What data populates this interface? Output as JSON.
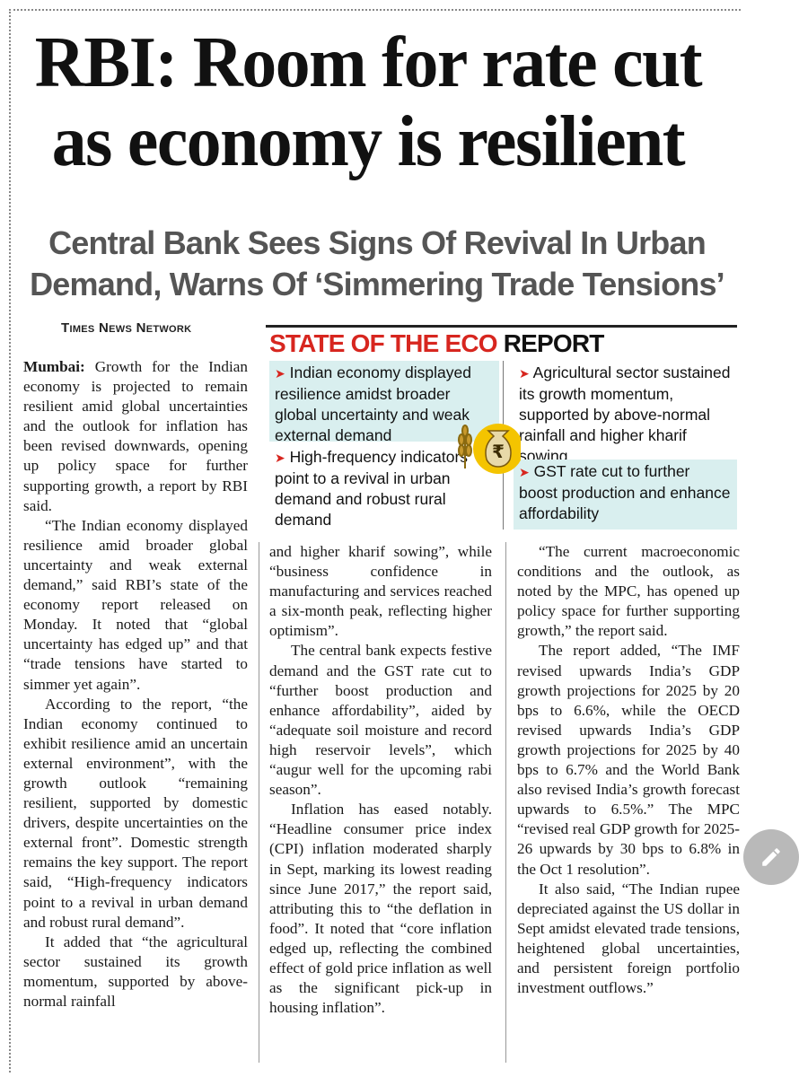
{
  "article": {
    "headline": "RBI: Room for rate cut as economy is resilient",
    "subheadline": "Central Bank Sees Signs Of Revival In Urban Demand, Warns Of ‘Simmering Trade Tensions’",
    "byline": "Times News Network",
    "dateline": "Mumbai:",
    "col1": {
      "p1": "Growth for the Indian economy is projected to remain resilient amid global uncertainties and the outlook for inflation has been revised downwards, opening up policy space for further supporting growth, a report by RBI said.",
      "p2": "“The Indian economy displayed resilience amid broader global uncertainty and weak external demand,” said RBI’s state of the economy report released on Monday. It noted that “global uncertainty has edged up” and that “trade tensions have started to simmer yet again”.",
      "p3": "According to the report, “the Indian economy continued to exhibit resilience amid an uncertain external environment”, with the growth outlook “remaining resilient, supported by domestic drivers, despite uncertainties on the external front”. Domestic strength remains the key support. The report said, “High-frequency indicators point to a revival in urban demand and robust rural demand”.",
      "p4": "It added that “the agricultural sector sustained its growth momentum, supported by above-normal rainfall"
    },
    "col2": {
      "p1": "and higher kharif sowing”, while “business confidence in manufacturing and services reached a six-month peak, reflecting higher optimism”.",
      "p2": "The central bank expects festive demand and the GST rate cut to “further boost production and enhance affordability”, aided by “adequate soil moisture and record high reservoir levels”, which “augur well for the upcoming rabi season”.",
      "p3": "Inflation has eased notably. “Headline consumer price index (CPI) inflation moderated sharply in Sept, marking its lowest reading since June 2017,” the report said, attributing this to “the deflation in food”. It noted that “core inflation edged up, reflecting the combined effect of gold price inflation as well as the significant pick-up in housing inflation”."
    },
    "col3": {
      "p1": "“The current macroeconomic conditions and the outlook, as noted by the MPC, has opened up policy space for further supporting growth,” the report said.",
      "p2": "The report added, “The IMF revised upwards India’s GDP growth projections for 2025 by 20 bps to 6.6%, while the OECD revised upwards India’s GDP growth projections for 2025 by 40 bps to 6.7% and the World Bank also revised India’s growth forecast upwards to 6.5%.” The MPC “revised real GDP growth for 2025-26 upwards by 30 bps to 6.8% in the Oct 1 resolution”.",
      "p3": "It also said, “The Indian rupee depreciated against the US dollar in Sept amidst elevated trade tensions, heightened global uncertainties, and persistent foreign portfolio investment outflows.”"
    }
  },
  "infobox": {
    "title_red": "STATE OF THE ECO",
    "title_black": "REPORT",
    "points": [
      "Indian economy displayed resilience amidst broader global uncertainty and weak external demand",
      "High-frequency indicators point to a revival in urban demand and robust rural demand",
      "Agricultural sector sustained its growth momentum, supported by above-normal rainfall and higher kharif sowing",
      "GST rate cut to further boost production and enhance affordability"
    ],
    "coin_symbol": "₹",
    "accent_color": "#d7261f",
    "tint_color": "#d9efef"
  },
  "ui": {
    "edit_icon": "pencil-icon"
  }
}
